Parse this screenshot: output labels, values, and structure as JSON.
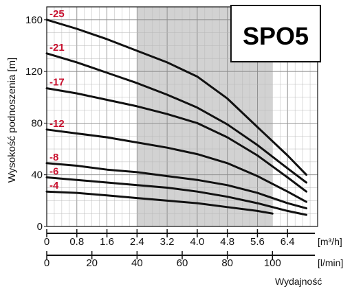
{
  "chart_data": {
    "type": "line",
    "title": "SPO5",
    "ylabel": "Wysokość podnoszenia [m]",
    "xlabel": "Wydajność",
    "x_unit_primary": "[m³/h]",
    "x_unit_secondary": "[l/min]",
    "xlim": [
      0,
      7.2
    ],
    "ylim": [
      0,
      170
    ],
    "x_ticks": [
      "0",
      "0.8",
      "1.6",
      "2.4",
      "3.2",
      "4.0",
      "4.8",
      "5.6",
      "6.4"
    ],
    "x_tick_values": [
      0,
      0.8,
      1.6,
      2.4,
      3.2,
      4.0,
      4.8,
      5.6,
      6.4
    ],
    "x2_ticks": [
      "0",
      "20",
      "40",
      "60",
      "80",
      "100"
    ],
    "x2_tick_values": [
      0,
      20,
      40,
      60,
      80,
      100
    ],
    "y_ticks": [
      "0",
      "40",
      "80",
      "120",
      "160"
    ],
    "y_tick_values": [
      0,
      40,
      80,
      120,
      160
    ],
    "grid": true,
    "shaded_region": [
      2.4,
      6.0
    ],
    "series": [
      {
        "name": "-25",
        "x": [
          0,
          0.8,
          1.6,
          2.4,
          3.2,
          4.0,
          4.8,
          5.6,
          6.4,
          6.9
        ],
        "y": [
          160,
          153,
          145,
          136,
          127,
          116,
          99,
          77,
          55,
          40
        ]
      },
      {
        "name": "-21",
        "x": [
          0,
          0.8,
          1.6,
          2.4,
          3.2,
          4.0,
          4.8,
          5.6,
          6.4,
          6.9
        ],
        "y": [
          134,
          127,
          119,
          111,
          102,
          92,
          79,
          63,
          45,
          34
        ]
      },
      {
        "name": "-17",
        "x": [
          0,
          0.8,
          1.6,
          2.4,
          3.2,
          4.0,
          4.8,
          5.6,
          6.4,
          6.9
        ],
        "y": [
          107,
          103,
          98,
          93,
          87,
          80,
          69,
          55,
          38,
          27
        ]
      },
      {
        "name": "-12",
        "x": [
          0,
          0.8,
          1.6,
          2.4,
          3.2,
          4.0,
          4.8,
          5.6,
          6.4,
          6.9
        ],
        "y": [
          75,
          72,
          69,
          65,
          61,
          56,
          49,
          39,
          27,
          19
        ]
      },
      {
        "name": "-8",
        "x": [
          0,
          0.8,
          1.6,
          2.4,
          3.2,
          4.0,
          4.8,
          5.6,
          6.4,
          6.9
        ],
        "y": [
          49,
          47,
          44,
          42,
          39,
          36,
          32,
          26,
          18,
          14
        ]
      },
      {
        "name": "-6",
        "x": [
          0,
          0.8,
          1.6,
          2.4,
          3.2,
          4.0,
          4.8,
          5.6,
          6.4,
          6.9
        ],
        "y": [
          38,
          36,
          34,
          32,
          30,
          27,
          23,
          18,
          12,
          9
        ]
      },
      {
        "name": "-4",
        "x": [
          0,
          0.8,
          1.6,
          2.4,
          3.2,
          4.0,
          4.8,
          5.6,
          6.0
        ],
        "y": [
          27,
          26,
          24,
          22,
          20,
          18,
          15,
          12,
          10
        ]
      }
    ],
    "colors": {
      "curve": "#111111",
      "label": "#c8102e",
      "shade": "#d2d2d2",
      "grid": "#b8b8b8"
    }
  }
}
